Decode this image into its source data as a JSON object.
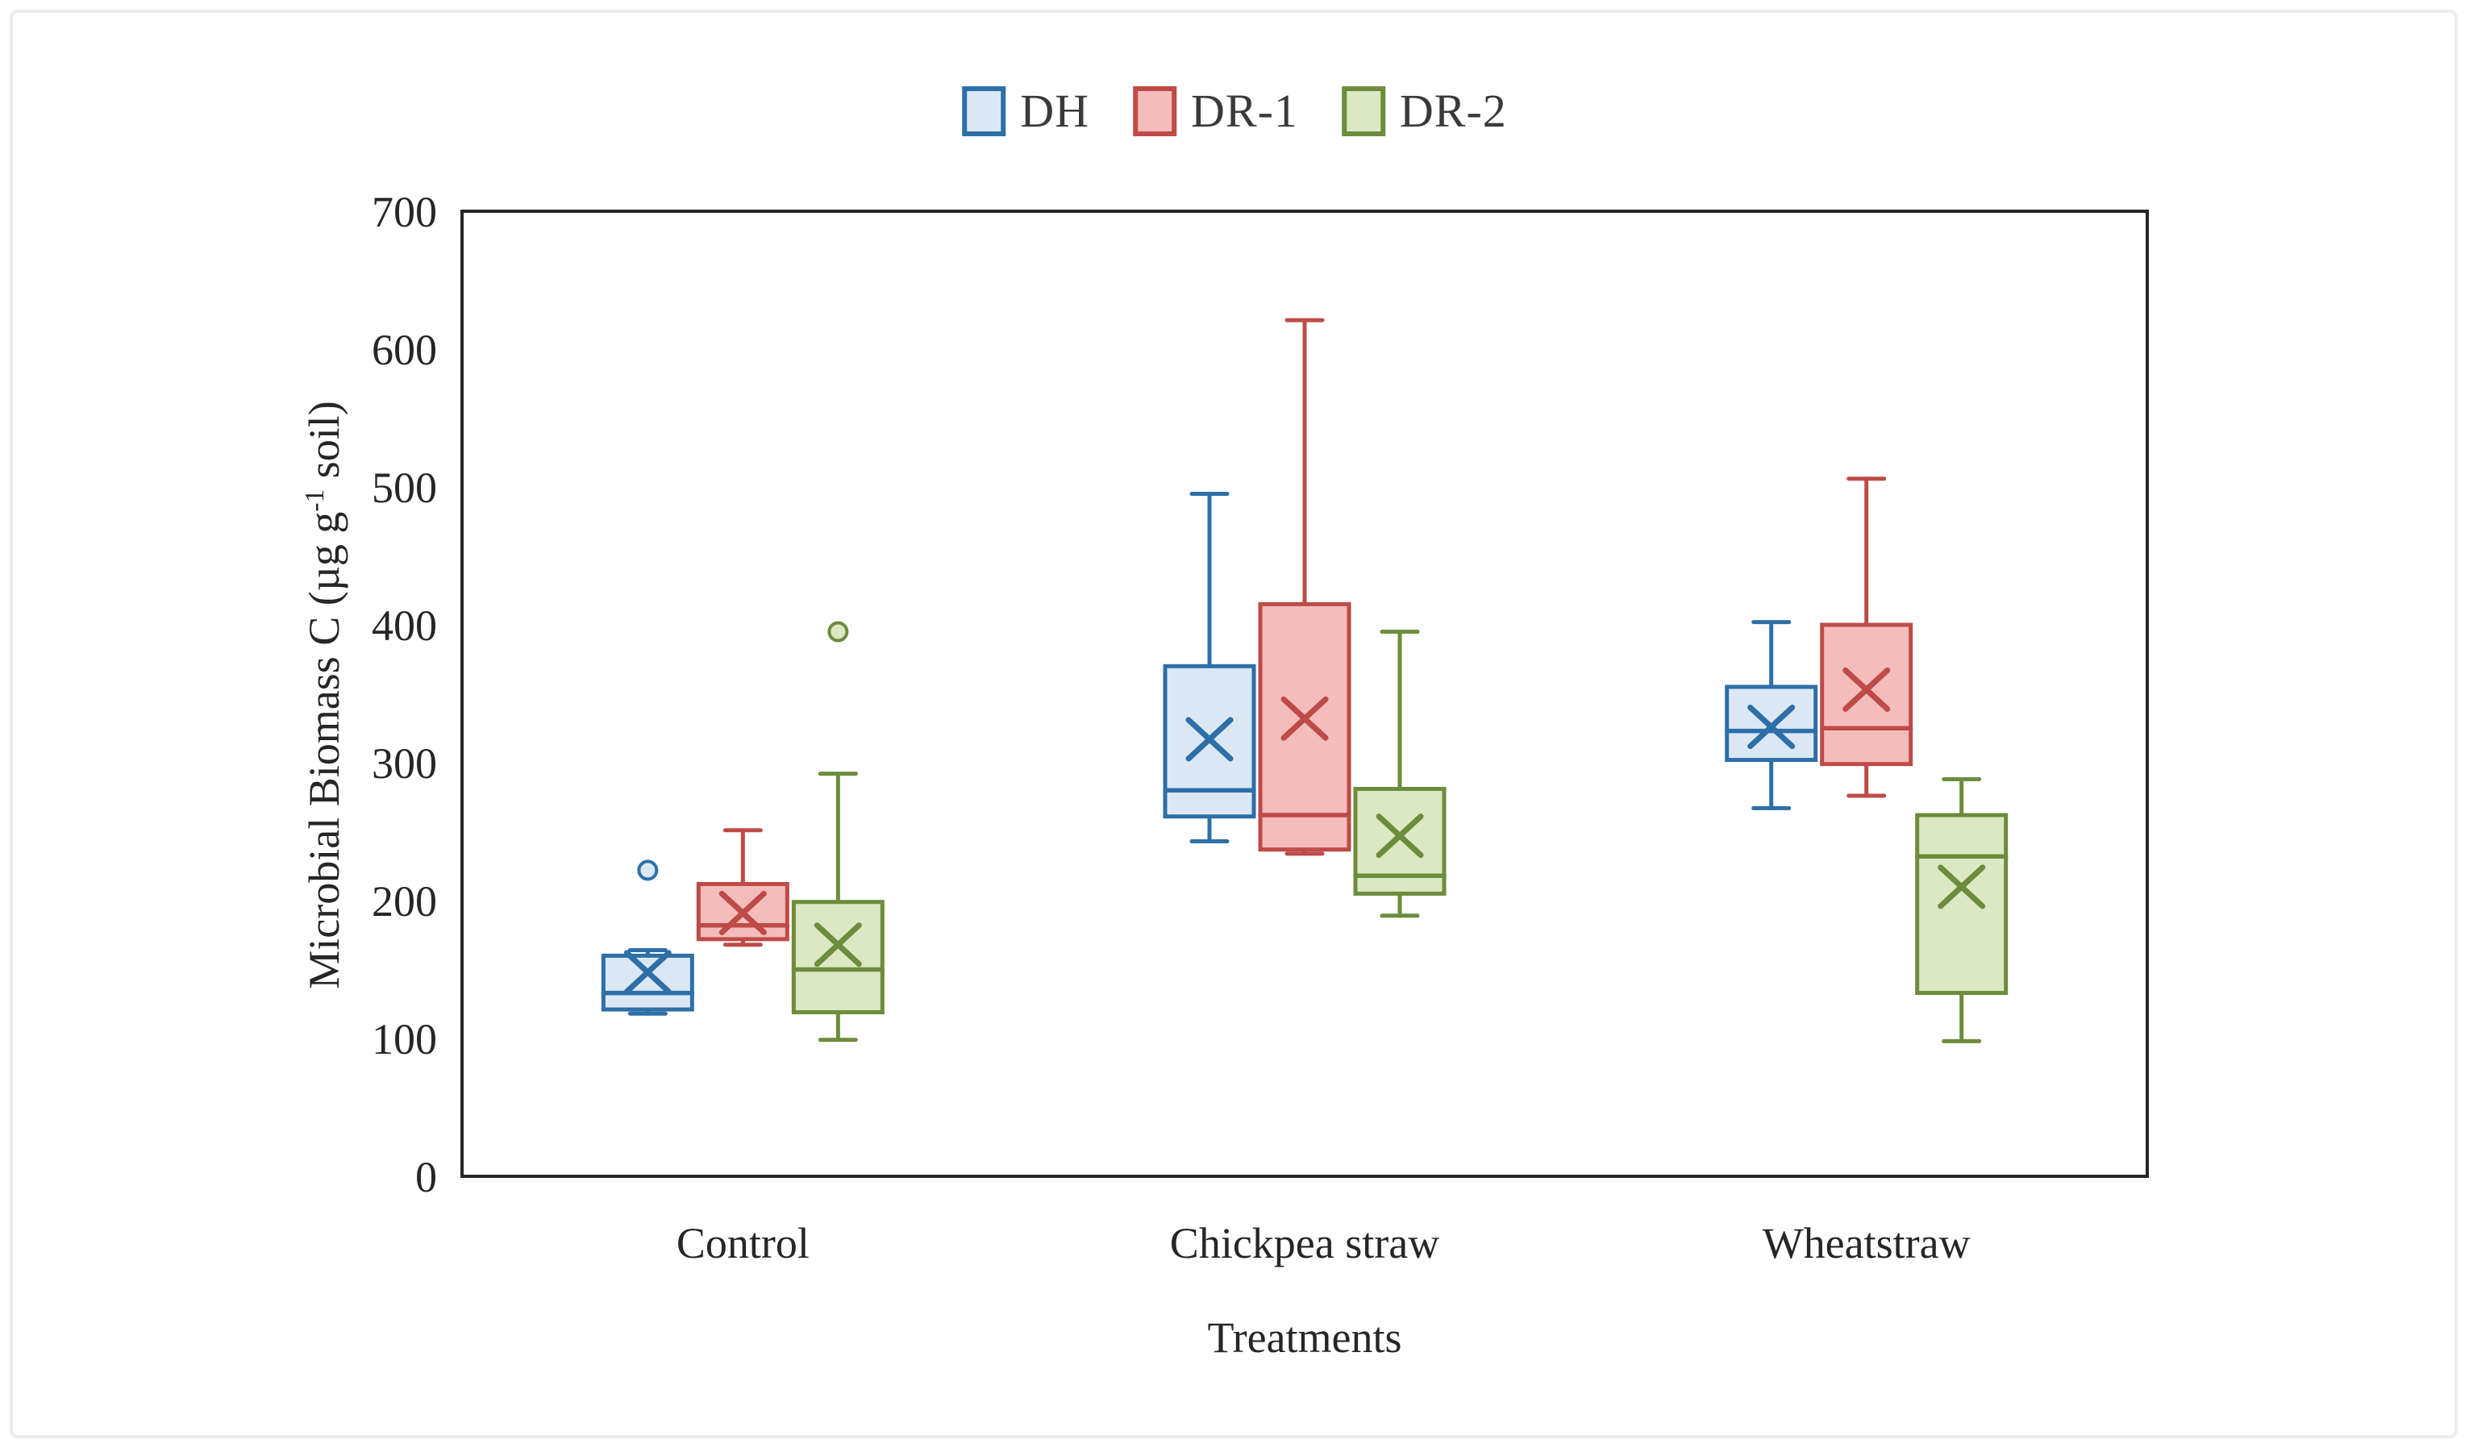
{
  "figure": {
    "background": "#ffffff",
    "frame_color": "#262626",
    "text_color": "#262626",
    "card_border_color": "#ececec"
  },
  "chart_data": {
    "type": "boxplot",
    "title": "",
    "xlabel": "Treatments",
    "ylabel": "Microbial Biomass C (µg g⁻¹ soil)",
    "ylabel_parts": {
      "prefix": "Microbial Biomass C (µg g",
      "sup": "-1",
      "suffix": " soil)"
    },
    "ylim": [
      0,
      700
    ],
    "yticks": [
      0,
      100,
      200,
      300,
      400,
      500,
      600,
      700
    ],
    "grid": false,
    "legend_position": "top-center",
    "categories": [
      "Control",
      "Chickpea straw",
      "Wheatstraw"
    ],
    "series": [
      {
        "name": "DH",
        "stroke": "#2E6FA8",
        "fill": "#DBE8F4",
        "boxes": [
          {
            "min": 118,
            "q1": 121,
            "median": 133,
            "q3": 160,
            "max": 164,
            "mean": 148,
            "outliers": [
              222
            ]
          },
          {
            "min": 243,
            "q1": 261,
            "median": 280,
            "q3": 370,
            "max": 495,
            "mean": 317,
            "outliers": []
          },
          {
            "min": 267,
            "q1": 302,
            "median": 323,
            "q3": 355,
            "max": 402,
            "mean": 326,
            "outliers": []
          }
        ]
      },
      {
        "name": "DR-1",
        "stroke": "#BE4B48",
        "fill": "#F4BCBB",
        "boxes": [
          {
            "min": 168,
            "q1": 172,
            "median": 182,
            "q3": 212,
            "max": 251,
            "mean": 191,
            "outliers": []
          },
          {
            "min": 234,
            "q1": 237,
            "median": 262,
            "q3": 415,
            "max": 621,
            "mean": 332,
            "outliers": []
          },
          {
            "min": 276,
            "q1": 299,
            "median": 325,
            "q3": 400,
            "max": 506,
            "mean": 353,
            "outliers": []
          }
        ]
      },
      {
        "name": "DR-2",
        "stroke": "#6D8C3C",
        "fill": "#DCE7C3",
        "boxes": [
          {
            "min": 99,
            "q1": 119,
            "median": 150,
            "q3": 199,
            "max": 292,
            "mean": 168,
            "outliers": [
              395
            ]
          },
          {
            "min": 189,
            "q1": 205,
            "median": 218,
            "q3": 281,
            "max": 395,
            "mean": 247,
            "outliers": []
          },
          {
            "min": 98,
            "q1": 133,
            "median": 232,
            "q3": 262,
            "max": 288,
            "mean": 210,
            "outliers": []
          }
        ]
      }
    ]
  }
}
